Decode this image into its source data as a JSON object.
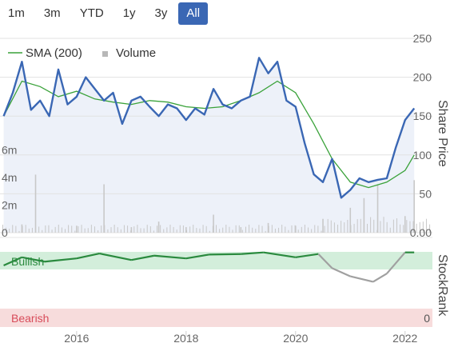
{
  "range_buttons": [
    "1m",
    "3m",
    "YTD",
    "1y",
    "3y",
    "All"
  ],
  "active_range": "All",
  "legend": {
    "sma_label": "SMA (200)",
    "volume_label": "Volume"
  },
  "colors": {
    "price": "#3a67b4",
    "sma": "#3aa23a",
    "volume": "#c8c8c8",
    "bullish_band": "#d3eedb",
    "bearish_band": "#f7dcdc",
    "rank_bull": "#2a8a3e",
    "rank_bear": "#a0a0a0",
    "bearish_text": "#d84c5a",
    "bullish_text": "#2a8a3e"
  },
  "chart_data": {
    "type": "line",
    "x_ticks": [
      "2016",
      "2018",
      "2020",
      "2022"
    ],
    "y_right": {
      "label": "Share Price",
      "ticks": [
        "250",
        "200",
        "150",
        "100",
        "50",
        "0.00"
      ],
      "ylim": [
        0,
        250
      ]
    },
    "y_left_volume": {
      "ticks": [
        "6m",
        "4m",
        "2m",
        "0"
      ],
      "ylim": [
        0,
        7
      ]
    },
    "series": [
      {
        "name": "Share Price",
        "x": [
          "2014-09",
          "2014-11",
          "2015-01",
          "2015-03",
          "2015-05",
          "2015-07",
          "2015-09",
          "2015-11",
          "2016-01",
          "2016-03",
          "2016-05",
          "2016-07",
          "2016-09",
          "2016-11",
          "2017-01",
          "2017-03",
          "2017-05",
          "2017-07",
          "2017-09",
          "2017-11",
          "2018-01",
          "2018-03",
          "2018-05",
          "2018-07",
          "2018-09",
          "2018-11",
          "2019-01",
          "2019-03",
          "2019-05",
          "2019-07",
          "2019-09",
          "2019-11",
          "2020-01",
          "2020-03",
          "2020-05",
          "2020-07",
          "2020-09",
          "2020-11",
          "2021-01",
          "2021-03",
          "2021-05",
          "2021-07",
          "2021-09",
          "2021-11",
          "2022-01",
          "2022-03"
        ],
        "y": [
          150,
          180,
          220,
          158,
          170,
          150,
          210,
          165,
          175,
          200,
          185,
          170,
          180,
          140,
          170,
          175,
          162,
          150,
          165,
          160,
          145,
          160,
          152,
          185,
          165,
          160,
          170,
          175,
          225,
          205,
          220,
          170,
          162,
          115,
          75,
          65,
          95,
          45,
          55,
          70,
          65,
          68,
          70,
          110,
          145,
          160
        ]
      },
      {
        "name": "SMA (200)",
        "x": [
          "2014-09",
          "2015-01",
          "2015-05",
          "2015-09",
          "2016-01",
          "2016-05",
          "2016-09",
          "2017-01",
          "2017-05",
          "2017-09",
          "2018-01",
          "2018-05",
          "2018-09",
          "2019-01",
          "2019-05",
          "2019-09",
          "2020-01",
          "2020-05",
          "2020-09",
          "2021-01",
          "2021-05",
          "2021-09",
          "2022-01",
          "2022-03"
        ],
        "y": [
          150,
          195,
          188,
          175,
          182,
          172,
          168,
          165,
          170,
          168,
          162,
          160,
          162,
          170,
          180,
          195,
          180,
          140,
          95,
          65,
          58,
          65,
          80,
          100
        ]
      }
    ],
    "volume": {
      "x": [
        "2015-01",
        "2015-04",
        "2016-01",
        "2016-07",
        "2017-01",
        "2017-07",
        "2018-01",
        "2018-07",
        "2019-01",
        "2019-07",
        "2020-01",
        "2020-07",
        "2021-01",
        "2021-04",
        "2021-07",
        "2022-01",
        "2022-03"
      ],
      "y": [
        0.6,
        4.2,
        0.5,
        3.5,
        0.4,
        0.8,
        0.4,
        1.3,
        0.4,
        0.7,
        0.5,
        1.0,
        1.8,
        2.5,
        3.5,
        1.2,
        3.8
      ]
    },
    "stockrank": {
      "label": "StockRank",
      "band_labels": {
        "bullish": "Bullish",
        "bearish": "Bearish"
      },
      "ticks": [
        "0"
      ],
      "x": [
        "2014-09",
        "2015-01",
        "2015-06",
        "2016-01",
        "2016-06",
        "2017-01",
        "2017-06",
        "2018-01",
        "2018-06",
        "2019-01",
        "2019-06",
        "2020-01",
        "2020-06",
        "2020-09",
        "2021-01",
        "2021-06",
        "2021-09",
        "2022-01",
        "2022-03"
      ],
      "y": [
        75,
        90,
        82,
        88,
        97,
        85,
        93,
        88,
        95,
        96,
        99,
        90,
        96,
        70,
        55,
        45,
        60,
        99,
        99
      ]
    }
  }
}
